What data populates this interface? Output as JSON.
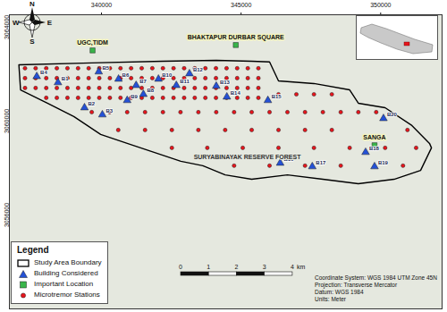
{
  "chart_data": {
    "type": "map",
    "xlim": [
      336700,
      352200
    ],
    "ylim": [
      3052000,
      3064530
    ],
    "xticks": [
      340000,
      345000,
      350000
    ],
    "yticks": [
      3056000,
      3060000,
      3064000
    ],
    "grid": false,
    "legend": "bottom-left",
    "legend_title": "Legend",
    "series": [
      {
        "name": "Study Area Boundary",
        "type": "polygon",
        "color": "#000000",
        "x": [
          337040,
          339650,
          342200,
          344110,
          345380,
          346020,
          346340,
          347610,
          348890,
          349200,
          350160,
          351120,
          351750,
          351820,
          351430,
          350480,
          349200,
          347930,
          346660,
          345380,
          344430,
          343630,
          342840,
          341880,
          340920,
          339970,
          339010,
          338060,
          337100
        ],
        "y": [
          3062400,
          3062480,
          3062550,
          3062590,
          3062550,
          3062520,
          3061710,
          3061600,
          3061330,
          3060760,
          3060570,
          3059810,
          3059050,
          3058860,
          3057900,
          3057520,
          3057330,
          3057520,
          3057710,
          3057520,
          3057710,
          3058100,
          3058290,
          3058670,
          3059050,
          3059430,
          3060190,
          3060760,
          3061330
        ]
      },
      {
        "name": "Building Considered",
        "type": "scatter",
        "marker": "triangle",
        "color": "#2451d6",
        "x": [
          338440,
          339390,
          340030,
          337680,
          339900,
          340610,
          341240,
          341500,
          340920,
          342040,
          342680,
          343150,
          344110,
          344490,
          345960,
          346400,
          347550,
          349460,
          349780,
          350100
        ],
        "y": [
          3061640,
          3060570,
          3060270,
          3061900,
          3062100,
          3061790,
          3061520,
          3061140,
          3060880,
          3061790,
          3061520,
          3062020,
          3061490,
          3061030,
          3060880,
          3058210,
          3058060,
          3058670,
          3058060,
          3060110
        ],
        "labels": [
          "B1",
          "B2",
          "B3",
          "B4",
          "B5",
          "B6",
          "B7",
          "B8",
          "B9",
          "B10",
          "B11",
          "B12",
          "B13",
          "B14",
          "B15",
          "B16",
          "B17",
          "B18",
          "B19",
          "B20"
        ]
      },
      {
        "name": "Important Location",
        "type": "scatter",
        "marker": "square",
        "color": "#39b54a",
        "x": [
          339680,
          344810,
          349780
        ],
        "y": [
          3063010,
          3063240,
          3058970
        ],
        "labels": [
          "UGC,TIDM",
          "BHAKTAPUR DURBAR SQUARE",
          "SANGA"
        ]
      },
      {
        "name": "Microtremor Stations",
        "type": "scatter",
        "marker": "circle",
        "color": "#e8141c",
        "x": [
          337260,
          337640,
          338020,
          338400,
          338780,
          339160,
          339540,
          339920,
          340300,
          340680,
          341060,
          341440,
          341820,
          342200,
          342580,
          342960,
          343340,
          343720,
          344100,
          344480,
          344860,
          345240,
          345620,
          337260,
          337640,
          338020,
          338400,
          338780,
          339160,
          339540,
          339920,
          340300,
          340680,
          341060,
          341440,
          341820,
          342200,
          342580,
          342960,
          343340,
          343720,
          344100,
          344480,
          344860,
          345240,
          345620,
          337260,
          337640,
          338020,
          338400,
          338780,
          339160,
          339540,
          339920,
          340300,
          340680,
          341060,
          341440,
          341820,
          342200,
          342580,
          342960,
          343340,
          343720,
          344100,
          344480,
          344860,
          345240,
          345620,
          338020,
          338400,
          338780,
          339160,
          339540,
          339920,
          340300,
          340680,
          341060,
          341440,
          341820,
          342200,
          342580,
          342960,
          343340,
          343720,
          344100,
          344480,
          344860,
          345240,
          345620,
          346340,
          346980,
          347610,
          348250,
          339650,
          340290,
          340920,
          341560,
          342200,
          342830,
          343470,
          344110,
          344750,
          345380,
          346020,
          346660,
          347290,
          347930,
          348570,
          349200,
          349840,
          340600,
          341560,
          342520,
          343470,
          344430,
          345380,
          346340,
          347290,
          348250,
          350960,
          342520,
          343790,
          345060,
          346340,
          347610,
          348890,
          350160,
          351270,
          344750,
          346020,
          347290,
          348570,
          350800
        ],
        "y": [
          3062250,
          3062250,
          3062250,
          3062250,
          3062250,
          3062250,
          3062250,
          3062250,
          3062250,
          3062250,
          3062250,
          3062250,
          3062250,
          3062250,
          3062250,
          3062250,
          3062250,
          3062250,
          3062250,
          3062250,
          3062250,
          3062250,
          3062250,
          3061830,
          3061830,
          3061830,
          3061830,
          3061830,
          3061830,
          3061830,
          3061830,
          3061830,
          3061830,
          3061830,
          3061830,
          3061830,
          3061830,
          3061830,
          3061830,
          3061830,
          3061830,
          3061830,
          3061830,
          3061830,
          3061830,
          3061830,
          3061410,
          3061410,
          3061410,
          3061410,
          3061410,
          3061410,
          3061410,
          3061410,
          3061410,
          3061410,
          3061410,
          3061410,
          3061410,
          3061410,
          3061410,
          3061410,
          3061410,
          3061410,
          3061410,
          3061410,
          3061410,
          3061410,
          3061410,
          3060990,
          3060990,
          3060990,
          3060990,
          3060990,
          3060990,
          3060990,
          3060990,
          3060990,
          3060990,
          3060990,
          3060990,
          3060990,
          3060990,
          3060990,
          3060990,
          3060990,
          3060990,
          3060990,
          3060990,
          3060990,
          3061140,
          3061140,
          3061140,
          3061140,
          3060380,
          3060380,
          3060380,
          3060380,
          3060380,
          3060380,
          3060380,
          3060380,
          3060380,
          3060380,
          3060380,
          3060380,
          3060380,
          3060380,
          3060380,
          3060380,
          3060380,
          3059620,
          3059620,
          3059620,
          3059620,
          3059620,
          3059620,
          3059620,
          3059620,
          3059620,
          3059620,
          3058860,
          3058860,
          3058860,
          3058860,
          3058860,
          3058860,
          3058860,
          3058860,
          3058100,
          3058100,
          3058100,
          3058100,
          3058100
        ]
      }
    ],
    "annotations": [
      {
        "text": "SURYABINAYAK RESERVE FOREST",
        "x": 345220,
        "y": 3058480
      }
    ],
    "scale_bar": {
      "ticks": [
        0,
        1,
        2,
        3,
        4
      ],
      "unit": "km"
    },
    "projection_info": [
      "Coordinate System: WGS 1984 UTM Zone 45N",
      "Projection: Transverse Mercator",
      "Datum: WGS 1984",
      "Units: Meter"
    ],
    "compass": [
      "N",
      "E",
      "S",
      "W"
    ]
  }
}
